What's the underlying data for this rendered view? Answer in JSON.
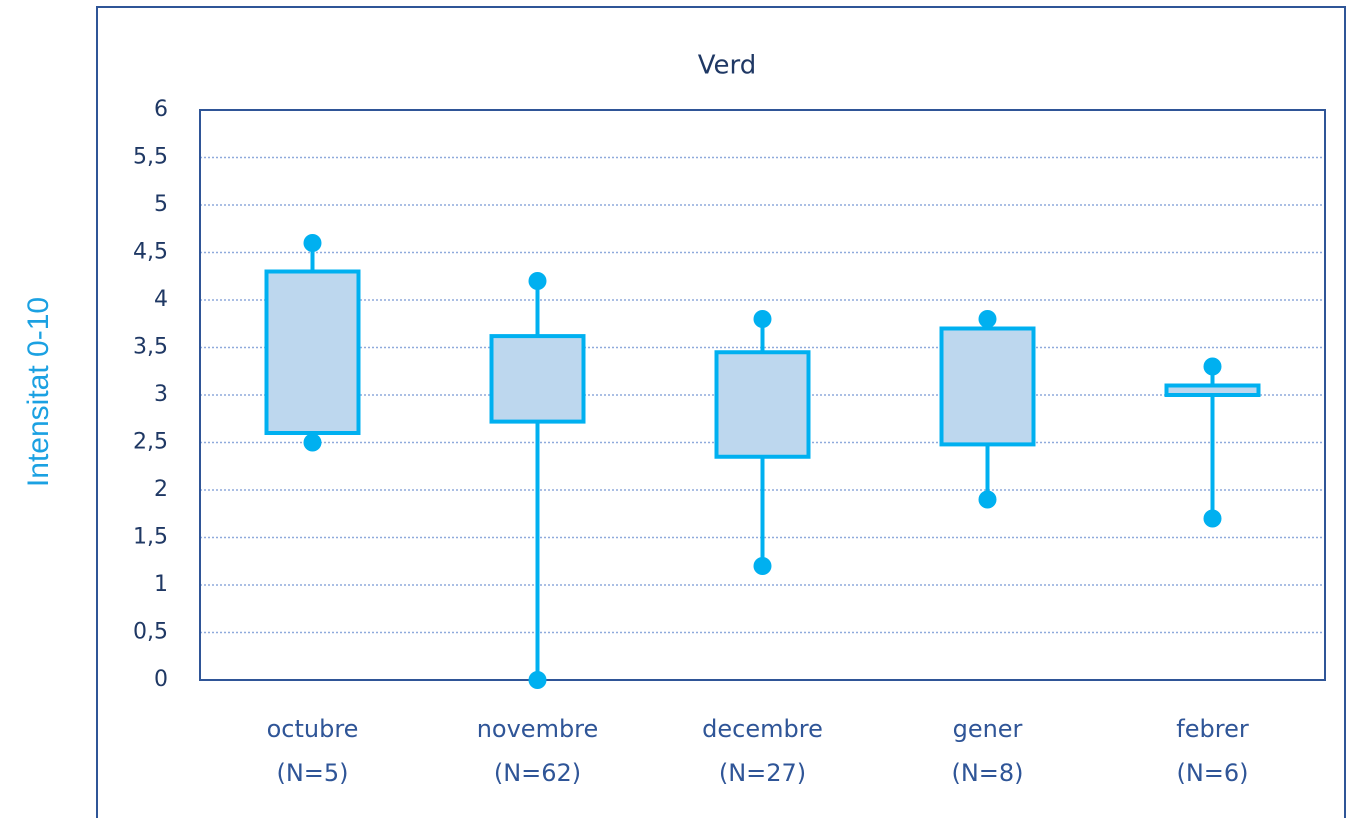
{
  "chart_data": {
    "type": "box",
    "title": "Verd",
    "ylabel": "Intensitat 0-10",
    "categories": [
      [
        "octubre",
        "(N=5)"
      ],
      [
        "novembre",
        "(N=62)"
      ],
      [
        "decembre",
        "(N=27)"
      ],
      [
        "gener",
        "(N=8)"
      ],
      [
        "febrer",
        "(N=6)"
      ]
    ],
    "boxes": [
      {
        "min": 2.5,
        "q1": 2.6,
        "q3": 4.3,
        "max": 4.6
      },
      {
        "min": 0,
        "q1": 2.72,
        "q3": 3.62,
        "max": 4.2
      },
      {
        "min": 1.2,
        "q1": 2.35,
        "q3": 3.45,
        "max": 3.8
      },
      {
        "min": 1.9,
        "q1": 2.48,
        "q3": 3.7,
        "max": 3.8
      },
      {
        "min": 1.7,
        "q1": 3.0,
        "q3": 3.1,
        "max": 3.3
      }
    ],
    "color": "#00b0f0",
    "fill": "#bdd7ee",
    "ylim": [
      0,
      6
    ],
    "yticks": [
      0,
      {
        "value": 0.5,
        "label": "0,5"
      },
      1,
      {
        "value": 1.5,
        "label": "1,5"
      },
      2,
      {
        "value": 2.5,
        "label": "2,5"
      },
      3,
      {
        "value": 3.5,
        "label": "3,5"
      },
      4,
      {
        "value": 4.5,
        "label": "4,5"
      },
      5,
      {
        "value": 5.5,
        "label": "5,5"
      },
      6
    ],
    "grid": true
  }
}
